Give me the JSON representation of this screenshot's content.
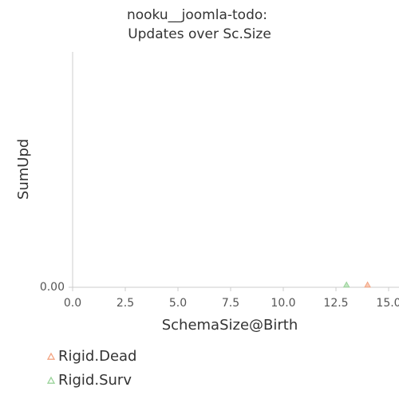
{
  "chart_data": {
    "type": "scatter",
    "title": [
      "nooku__joomla-todo:",
      "Updates over Sc.Size"
    ],
    "xlabel": "SchemaSize@Birth",
    "ylabel": "SumUpd",
    "xlim": [
      0,
      15
    ],
    "ylim": [
      0,
      1
    ],
    "xticks": [
      {
        "value": 0,
        "label": "0.0"
      },
      {
        "value": 2.5,
        "label": "2.5"
      },
      {
        "value": 5,
        "label": "5.0"
      },
      {
        "value": 7.5,
        "label": "7.5"
      },
      {
        "value": 10,
        "label": "10.0"
      },
      {
        "value": 12.5,
        "label": "12.5"
      },
      {
        "value": 15,
        "label": "15.0"
      }
    ],
    "yticks": [
      {
        "value": 0,
        "label": "0.00"
      }
    ],
    "series": [
      {
        "name": "Rigid.Dead",
        "color": "#f4a582",
        "x": [
          14
        ],
        "values": [
          0
        ]
      },
      {
        "name": "Rigid.Surv",
        "color": "#9ad39a",
        "x": [
          13
        ],
        "values": [
          0
        ]
      }
    ]
  }
}
